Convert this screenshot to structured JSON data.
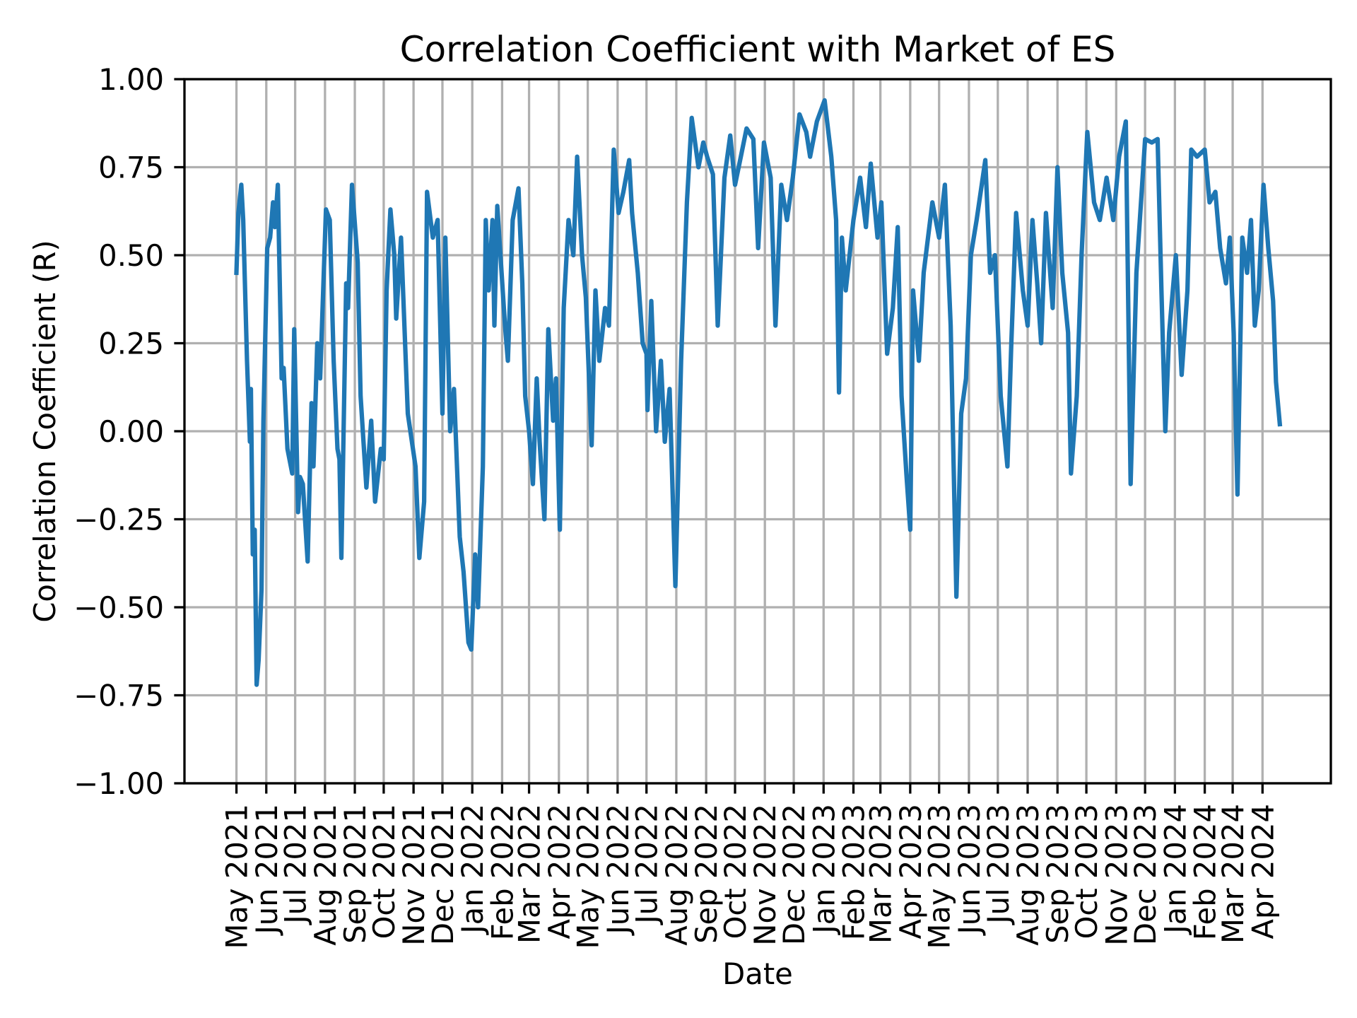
{
  "chart_data": {
    "type": "line",
    "title": "Correlation Coefficient with Market of ES",
    "xlabel": "Date",
    "ylabel": "Correlation Coefficient (R)",
    "xlim": [
      "2021-03-08",
      "2024-06-11"
    ],
    "ylim": [
      -1.0,
      1.0
    ],
    "grid": true,
    "line_color": "#1f77b4",
    "grid_color": "#b0b0b0",
    "yticks": [
      {
        "value": -1.0,
        "label": "−1.00"
      },
      {
        "value": -0.75,
        "label": "−0.75"
      },
      {
        "value": -0.5,
        "label": "−0.50"
      },
      {
        "value": -0.25,
        "label": "−0.25"
      },
      {
        "value": 0.0,
        "label": "0.00"
      },
      {
        "value": 0.25,
        "label": "0.25"
      },
      {
        "value": 0.5,
        "label": "0.50"
      },
      {
        "value": 0.75,
        "label": "0.75"
      },
      {
        "value": 1.0,
        "label": "1.00"
      }
    ],
    "xticks": [
      {
        "date": "2021-05-01",
        "label": "May 2021"
      },
      {
        "date": "2021-06-01",
        "label": "Jun 2021"
      },
      {
        "date": "2021-07-01",
        "label": "Jul 2021"
      },
      {
        "date": "2021-08-01",
        "label": "Aug 2021"
      },
      {
        "date": "2021-09-01",
        "label": "Sep 2021"
      },
      {
        "date": "2021-10-01",
        "label": "Oct 2021"
      },
      {
        "date": "2021-11-01",
        "label": "Nov 2021"
      },
      {
        "date": "2021-12-01",
        "label": "Dec 2021"
      },
      {
        "date": "2022-01-01",
        "label": "Jan 2022"
      },
      {
        "date": "2022-02-01",
        "label": "Feb 2022"
      },
      {
        "date": "2022-03-01",
        "label": "Mar 2022"
      },
      {
        "date": "2022-04-01",
        "label": "Apr 2022"
      },
      {
        "date": "2022-05-01",
        "label": "May 2022"
      },
      {
        "date": "2022-06-01",
        "label": "Jun 2022"
      },
      {
        "date": "2022-07-01",
        "label": "Jul 2022"
      },
      {
        "date": "2022-08-01",
        "label": "Aug 2022"
      },
      {
        "date": "2022-09-01",
        "label": "Sep 2022"
      },
      {
        "date": "2022-10-01",
        "label": "Oct 2022"
      },
      {
        "date": "2022-11-01",
        "label": "Nov 2022"
      },
      {
        "date": "2022-12-01",
        "label": "Dec 2022"
      },
      {
        "date": "2023-01-01",
        "label": "Jan 2023"
      },
      {
        "date": "2023-02-01",
        "label": "Feb 2023"
      },
      {
        "date": "2023-03-01",
        "label": "Mar 2023"
      },
      {
        "date": "2023-04-01",
        "label": "Apr 2023"
      },
      {
        "date": "2023-05-01",
        "label": "May 2023"
      },
      {
        "date": "2023-06-01",
        "label": "Jun 2023"
      },
      {
        "date": "2023-07-01",
        "label": "Jul 2023"
      },
      {
        "date": "2023-08-01",
        "label": "Aug 2023"
      },
      {
        "date": "2023-09-01",
        "label": "Sep 2023"
      },
      {
        "date": "2023-10-01",
        "label": "Oct 2023"
      },
      {
        "date": "2023-11-01",
        "label": "Nov 2023"
      },
      {
        "date": "2023-12-01",
        "label": "Dec 2023"
      },
      {
        "date": "2024-01-01",
        "label": "Jan 2024"
      },
      {
        "date": "2024-02-01",
        "label": "Feb 2024"
      },
      {
        "date": "2024-03-01",
        "label": "Mar 2024"
      },
      {
        "date": "2024-04-01",
        "label": "Apr 2024"
      }
    ],
    "series": [
      {
        "points": [
          [
            "2021-05-01",
            0.45
          ],
          [
            "2021-05-03",
            0.62
          ],
          [
            "2021-05-06",
            0.7
          ],
          [
            "2021-05-08",
            0.6
          ],
          [
            "2021-05-12",
            0.2
          ],
          [
            "2021-05-15",
            -0.03
          ],
          [
            "2021-05-16",
            0.12
          ],
          [
            "2021-05-18",
            -0.35
          ],
          [
            "2021-05-20",
            -0.28
          ],
          [
            "2021-05-22",
            -0.72
          ],
          [
            "2021-05-24",
            -0.65
          ],
          [
            "2021-05-27",
            -0.45
          ],
          [
            "2021-05-29",
            0.03
          ],
          [
            "2021-06-02",
            0.52
          ],
          [
            "2021-06-05",
            0.55
          ],
          [
            "2021-06-08",
            0.65
          ],
          [
            "2021-06-10",
            0.58
          ],
          [
            "2021-06-13",
            0.7
          ],
          [
            "2021-06-17",
            0.15
          ],
          [
            "2021-06-19",
            0.18
          ],
          [
            "2021-06-23",
            -0.05
          ],
          [
            "2021-06-28",
            -0.12
          ],
          [
            "2021-06-30",
            0.29
          ],
          [
            "2021-07-04",
            -0.23
          ],
          [
            "2021-07-06",
            -0.13
          ],
          [
            "2021-07-09",
            -0.15
          ],
          [
            "2021-07-14",
            -0.37
          ],
          [
            "2021-07-18",
            0.08
          ],
          [
            "2021-07-20",
            -0.1
          ],
          [
            "2021-07-24",
            0.25
          ],
          [
            "2021-07-27",
            0.15
          ],
          [
            "2021-08-02",
            0.63
          ],
          [
            "2021-08-06",
            0.6
          ],
          [
            "2021-08-10",
            0.2
          ],
          [
            "2021-08-14",
            -0.05
          ],
          [
            "2021-08-16",
            -0.08
          ],
          [
            "2021-08-18",
            -0.36
          ],
          [
            "2021-08-23",
            0.42
          ],
          [
            "2021-08-25",
            0.35
          ],
          [
            "2021-08-29",
            0.7
          ],
          [
            "2021-09-04",
            0.48
          ],
          [
            "2021-09-07",
            0.1
          ],
          [
            "2021-09-13",
            -0.16
          ],
          [
            "2021-09-18",
            0.03
          ],
          [
            "2021-09-22",
            -0.2
          ],
          [
            "2021-09-28",
            -0.05
          ],
          [
            "2021-10-01",
            -0.08
          ],
          [
            "2021-10-04",
            0.4
          ],
          [
            "2021-10-08",
            0.63
          ],
          [
            "2021-10-12",
            0.5
          ],
          [
            "2021-10-14",
            0.32
          ],
          [
            "2021-10-19",
            0.55
          ],
          [
            "2021-10-26",
            0.05
          ],
          [
            "2021-11-03",
            -0.1
          ],
          [
            "2021-11-07",
            -0.36
          ],
          [
            "2021-11-12",
            -0.2
          ],
          [
            "2021-11-15",
            0.68
          ],
          [
            "2021-11-21",
            0.55
          ],
          [
            "2021-11-26",
            0.6
          ],
          [
            "2021-12-01",
            0.05
          ],
          [
            "2021-12-04",
            0.55
          ],
          [
            "2021-12-09",
            0.0
          ],
          [
            "2021-12-13",
            0.12
          ],
          [
            "2021-12-19",
            -0.3
          ],
          [
            "2021-12-23",
            -0.4
          ],
          [
            "2021-12-28",
            -0.6
          ],
          [
            "2021-12-31",
            -0.62
          ],
          [
            "2022-01-04",
            -0.35
          ],
          [
            "2022-01-07",
            -0.5
          ],
          [
            "2022-01-12",
            -0.1
          ],
          [
            "2022-01-15",
            0.6
          ],
          [
            "2022-01-18",
            0.4
          ],
          [
            "2022-01-22",
            0.6
          ],
          [
            "2022-01-24",
            0.3
          ],
          [
            "2022-01-27",
            0.64
          ],
          [
            "2022-02-04",
            0.3
          ],
          [
            "2022-02-07",
            0.2
          ],
          [
            "2022-02-12",
            0.6
          ],
          [
            "2022-02-18",
            0.69
          ],
          [
            "2022-02-22",
            0.42
          ],
          [
            "2022-02-25",
            0.1
          ],
          [
            "2022-03-01",
            0.0
          ],
          [
            "2022-03-05",
            -0.15
          ],
          [
            "2022-03-09",
            0.15
          ],
          [
            "2022-03-12",
            -0.03
          ],
          [
            "2022-03-17",
            -0.25
          ],
          [
            "2022-03-21",
            0.29
          ],
          [
            "2022-03-26",
            0.03
          ],
          [
            "2022-03-29",
            0.15
          ],
          [
            "2022-04-02",
            -0.28
          ],
          [
            "2022-04-06",
            0.35
          ],
          [
            "2022-04-11",
            0.6
          ],
          [
            "2022-04-16",
            0.5
          ],
          [
            "2022-04-20",
            0.78
          ],
          [
            "2022-04-25",
            0.5
          ],
          [
            "2022-04-29",
            0.38
          ],
          [
            "2022-05-03",
            0.1
          ],
          [
            "2022-05-05",
            -0.04
          ],
          [
            "2022-05-09",
            0.4
          ],
          [
            "2022-05-13",
            0.2
          ],
          [
            "2022-05-19",
            0.35
          ],
          [
            "2022-05-23",
            0.3
          ],
          [
            "2022-05-28",
            0.8
          ],
          [
            "2022-06-02",
            0.62
          ],
          [
            "2022-06-07",
            0.68
          ],
          [
            "2022-06-13",
            0.77
          ],
          [
            "2022-06-16",
            0.62
          ],
          [
            "2022-06-22",
            0.45
          ],
          [
            "2022-06-27",
            0.25
          ],
          [
            "2022-07-01",
            0.22
          ],
          [
            "2022-07-02",
            0.06
          ],
          [
            "2022-07-06",
            0.37
          ],
          [
            "2022-07-11",
            0.0
          ],
          [
            "2022-07-16",
            0.2
          ],
          [
            "2022-07-20",
            -0.03
          ],
          [
            "2022-07-25",
            0.12
          ],
          [
            "2022-07-31",
            -0.44
          ],
          [
            "2022-08-06",
            0.2
          ],
          [
            "2022-08-12",
            0.65
          ],
          [
            "2022-08-17",
            0.89
          ],
          [
            "2022-08-24",
            0.75
          ],
          [
            "2022-08-29",
            0.82
          ],
          [
            "2022-09-02",
            0.78
          ],
          [
            "2022-09-08",
            0.73
          ],
          [
            "2022-09-13",
            0.3
          ],
          [
            "2022-09-20",
            0.72
          ],
          [
            "2022-09-26",
            0.84
          ],
          [
            "2022-10-01",
            0.7
          ],
          [
            "2022-10-07",
            0.78
          ],
          [
            "2022-10-13",
            0.86
          ],
          [
            "2022-10-20",
            0.83
          ],
          [
            "2022-10-25",
            0.52
          ],
          [
            "2022-10-31",
            0.82
          ],
          [
            "2022-11-07",
            0.72
          ],
          [
            "2022-11-12",
            0.3
          ],
          [
            "2022-11-18",
            0.7
          ],
          [
            "2022-11-24",
            0.6
          ],
          [
            "2022-11-30",
            0.72
          ],
          [
            "2022-12-07",
            0.9
          ],
          [
            "2022-12-14",
            0.85
          ],
          [
            "2022-12-18",
            0.78
          ],
          [
            "2022-12-25",
            0.88
          ],
          [
            "2023-01-02",
            0.94
          ],
          [
            "2023-01-09",
            0.78
          ],
          [
            "2023-01-14",
            0.6
          ],
          [
            "2023-01-17",
            0.11
          ],
          [
            "2023-01-20",
            0.55
          ],
          [
            "2023-01-24",
            0.4
          ],
          [
            "2023-02-01",
            0.6
          ],
          [
            "2023-02-08",
            0.72
          ],
          [
            "2023-02-14",
            0.58
          ],
          [
            "2023-02-19",
            0.76
          ],
          [
            "2023-02-26",
            0.55
          ],
          [
            "2023-03-02",
            0.65
          ],
          [
            "2023-03-08",
            0.22
          ],
          [
            "2023-03-14",
            0.35
          ],
          [
            "2023-03-19",
            0.58
          ],
          [
            "2023-03-23",
            0.1
          ],
          [
            "2023-03-28",
            -0.12
          ],
          [
            "2023-04-01",
            -0.28
          ],
          [
            "2023-04-04",
            0.4
          ],
          [
            "2023-04-10",
            0.2
          ],
          [
            "2023-04-15",
            0.45
          ],
          [
            "2023-04-24",
            0.65
          ],
          [
            "2023-05-01",
            0.55
          ],
          [
            "2023-05-07",
            0.7
          ],
          [
            "2023-05-13",
            0.3
          ],
          [
            "2023-05-19",
            -0.47
          ],
          [
            "2023-05-24",
            0.05
          ],
          [
            "2023-05-29",
            0.15
          ],
          [
            "2023-06-03",
            0.5
          ],
          [
            "2023-06-09",
            0.6
          ],
          [
            "2023-06-18",
            0.77
          ],
          [
            "2023-06-23",
            0.45
          ],
          [
            "2023-06-28",
            0.5
          ],
          [
            "2023-07-04",
            0.1
          ],
          [
            "2023-07-11",
            -0.1
          ],
          [
            "2023-07-15",
            0.25
          ],
          [
            "2023-07-20",
            0.62
          ],
          [
            "2023-07-27",
            0.4
          ],
          [
            "2023-08-01",
            0.3
          ],
          [
            "2023-08-06",
            0.6
          ],
          [
            "2023-08-11",
            0.42
          ],
          [
            "2023-08-15",
            0.25
          ],
          [
            "2023-08-20",
            0.62
          ],
          [
            "2023-08-27",
            0.35
          ],
          [
            "2023-09-01",
            0.75
          ],
          [
            "2023-09-06",
            0.45
          ],
          [
            "2023-09-12",
            0.28
          ],
          [
            "2023-09-15",
            -0.12
          ],
          [
            "2023-09-21",
            0.1
          ],
          [
            "2023-09-26",
            0.5
          ],
          [
            "2023-10-02",
            0.85
          ],
          [
            "2023-10-09",
            0.65
          ],
          [
            "2023-10-15",
            0.6
          ],
          [
            "2023-10-22",
            0.72
          ],
          [
            "2023-10-29",
            0.6
          ],
          [
            "2023-11-04",
            0.78
          ],
          [
            "2023-11-11",
            0.88
          ],
          [
            "2023-11-16",
            -0.15
          ],
          [
            "2023-11-22",
            0.45
          ],
          [
            "2023-12-01",
            0.83
          ],
          [
            "2023-12-08",
            0.82
          ],
          [
            "2023-12-14",
            0.83
          ],
          [
            "2023-12-18",
            0.4
          ],
          [
            "2023-12-22",
            0.0
          ],
          [
            "2023-12-26",
            0.28
          ],
          [
            "2024-01-02",
            0.5
          ],
          [
            "2024-01-08",
            0.16
          ],
          [
            "2024-01-14",
            0.4
          ],
          [
            "2024-01-18",
            0.8
          ],
          [
            "2024-01-24",
            0.78
          ],
          [
            "2024-02-01",
            0.8
          ],
          [
            "2024-02-06",
            0.65
          ],
          [
            "2024-02-12",
            0.68
          ],
          [
            "2024-02-17",
            0.52
          ],
          [
            "2024-02-23",
            0.42
          ],
          [
            "2024-02-27",
            0.55
          ],
          [
            "2024-03-02",
            0.28
          ],
          [
            "2024-03-06",
            -0.18
          ],
          [
            "2024-03-11",
            0.55
          ],
          [
            "2024-03-16",
            0.45
          ],
          [
            "2024-03-20",
            0.6
          ],
          [
            "2024-03-24",
            0.3
          ],
          [
            "2024-03-28",
            0.4
          ],
          [
            "2024-04-02",
            0.7
          ],
          [
            "2024-04-07",
            0.52
          ],
          [
            "2024-04-12",
            0.37
          ],
          [
            "2024-04-15",
            0.14
          ],
          [
            "2024-04-19",
            0.02
          ]
        ]
      }
    ]
  }
}
